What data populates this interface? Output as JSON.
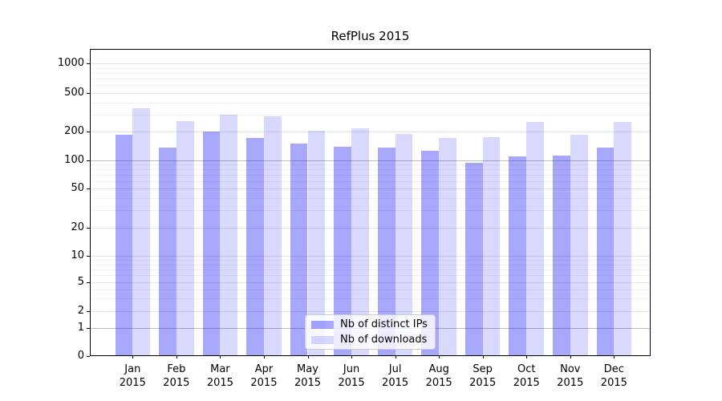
{
  "title": "RefPlus 2015",
  "chart_data": {
    "type": "bar",
    "title": "RefPlus 2015",
    "categories": [
      "Jan 2015",
      "Feb 2015",
      "Mar 2015",
      "Apr 2015",
      "May 2015",
      "Jun 2015",
      "Jul 2015",
      "Aug 2015",
      "Sep 2015",
      "Oct 2015",
      "Nov 2015",
      "Dec 2015"
    ],
    "series": [
      {
        "name": "Nb of distinct IPs",
        "color": "rgba(0,0,247,0.345)",
        "values": [
          185,
          135,
          200,
          170,
          150,
          140,
          135,
          125,
          95,
          110,
          112,
          135
        ]
      },
      {
        "name": "Nb of downloads",
        "color": "rgba(0,0,247,0.15)",
        "values": [
          350,
          255,
          300,
          290,
          205,
          215,
          190,
          170,
          175,
          250,
          185,
          250
        ]
      }
    ],
    "xlabel": "",
    "ylabel": "",
    "yscale": "symlog",
    "y_ticks": [
      0,
      1,
      2,
      5,
      10,
      20,
      50,
      100,
      200,
      500,
      1000
    ],
    "y_minor_ticks": [
      3,
      4,
      6,
      7,
      8,
      9,
      30,
      40,
      60,
      70,
      80,
      90,
      300,
      400,
      600,
      700,
      800,
      900
    ],
    "ylim": [
      0,
      1400
    ],
    "grid": true,
    "legend_position": "lower center"
  },
  "colors": {
    "grid_minor": "#f0f0f0",
    "grid_major": "#e4e4e4",
    "grid_major_dark": "#bdbdbd",
    "axis": "#000000",
    "legend_border": "#cccccc"
  }
}
